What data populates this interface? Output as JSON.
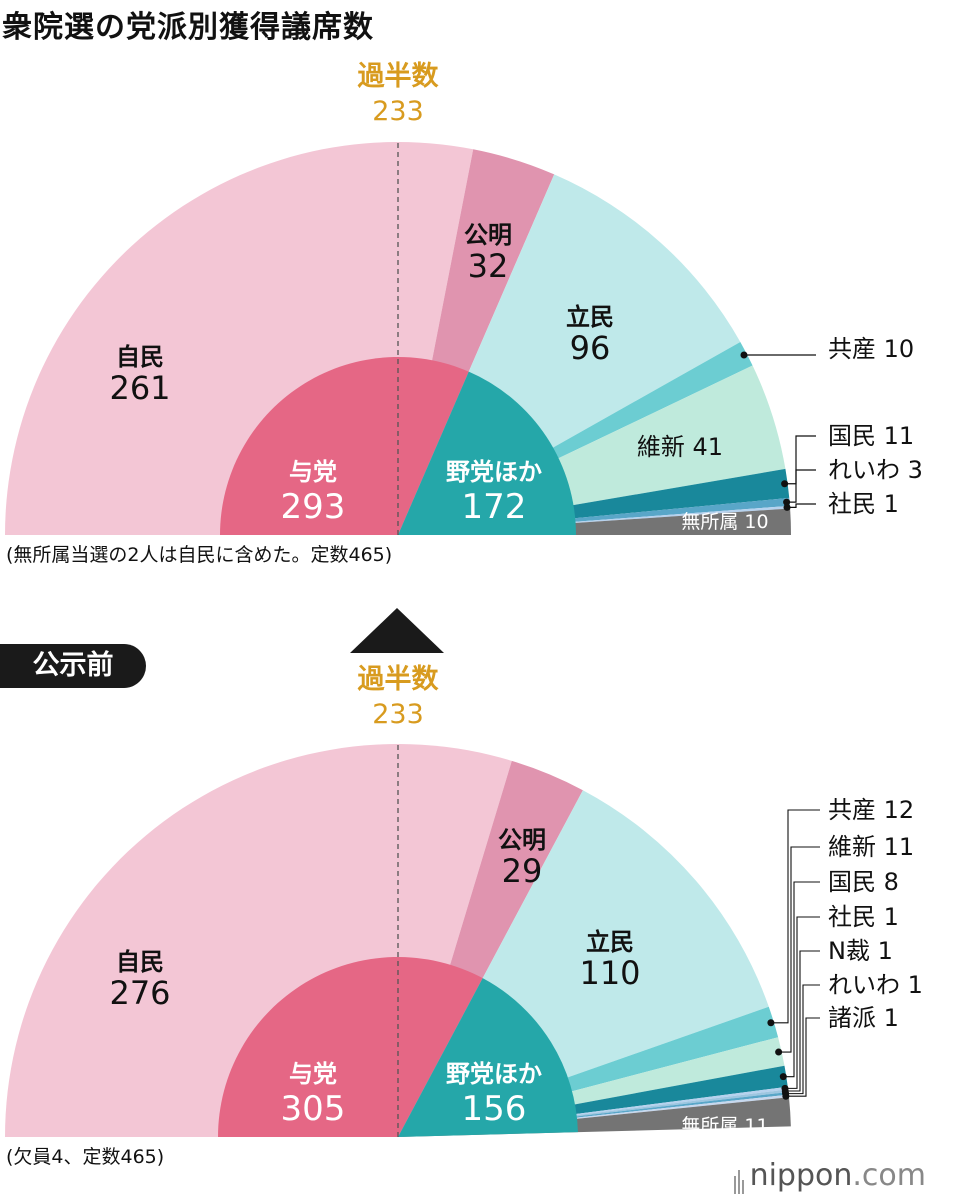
{
  "title": "衆院選の党派別獲得議席数",
  "colors": {
    "jimin": "#f3c6d5",
    "komei": "#e094af",
    "ritsumin": "#bfe9ea",
    "kyosan": "#6ccdd2",
    "ishin": "#bfeadc",
    "kokumin": "#19889b",
    "reiwa": "#59a6c8",
    "shamin": "#b6d2ee",
    "nkoku": "#9dc6e0",
    "shoha": "#c7d8ee",
    "mushozoku": "#747474",
    "ruling": "#e56785",
    "opposition": "#25a7a9",
    "majority": "#d89b1f"
  },
  "logo": {
    "name": "nippon",
    "suffix": ".com"
  },
  "before_label": "公示前",
  "chart_data": [
    {
      "type": "pie",
      "subtitle": "",
      "total_note": "(無所属当選の2人は自民に含めた。定数465)",
      "total": 465,
      "majority": {
        "label": "過半数",
        "value": "233"
      },
      "outer": [
        {
          "name": "自民",
          "value": 261,
          "color": "#f3c6d5",
          "label_value": "261"
        },
        {
          "name": "公明",
          "value": 32,
          "color": "#e094af",
          "label_value": "32"
        },
        {
          "name": "立民",
          "value": 96,
          "color": "#bfe9ea",
          "label_value": "96"
        },
        {
          "name": "共産",
          "value": 10,
          "color": "#6ccdd2",
          "label_value": "10",
          "callout": true
        },
        {
          "name": "維新",
          "value": 41,
          "color": "#bfeadc",
          "label_value": "41"
        },
        {
          "name": "国民",
          "value": 11,
          "color": "#19889b",
          "label_value": "11",
          "callout": true
        },
        {
          "name": "れいわ",
          "value": 3,
          "color": "#59a6c8",
          "label_value": "3",
          "callout": true
        },
        {
          "name": "社民",
          "value": 1,
          "color": "#b6d2ee",
          "label_value": "1",
          "callout": true
        },
        {
          "name": "無所属",
          "value": 10,
          "color": "#747474",
          "label_value": "10"
        }
      ],
      "inner": [
        {
          "name": "与党",
          "value": 293,
          "color": "#e56785",
          "label_value": "293"
        },
        {
          "name": "野党ほか",
          "value": 172,
          "color": "#25a7a9",
          "label_value": "172"
        }
      ]
    },
    {
      "type": "pie",
      "subtitle": "公示前",
      "total_note": "(欠員4、定数465)",
      "total": 465,
      "majority": {
        "label": "過半数",
        "value": "233"
      },
      "outer": [
        {
          "name": "自民",
          "value": 276,
          "color": "#f3c6d5",
          "label_value": "276"
        },
        {
          "name": "公明",
          "value": 29,
          "color": "#e094af",
          "label_value": "29"
        },
        {
          "name": "立民",
          "value": 110,
          "color": "#bfe9ea",
          "label_value": "110"
        },
        {
          "name": "共産",
          "value": 12,
          "color": "#6ccdd2",
          "label_value": "12",
          "callout": true
        },
        {
          "name": "維新",
          "value": 11,
          "color": "#bfeadc",
          "label_value": "11",
          "callout": true
        },
        {
          "name": "国民",
          "value": 8,
          "color": "#19889b",
          "label_value": "8",
          "callout": true
        },
        {
          "name": "社民",
          "value": 1,
          "color": "#b6d2ee",
          "label_value": "1",
          "callout": true
        },
        {
          "name": "N裁",
          "value": 1,
          "color": "#9dc6e0",
          "label_value": "1",
          "callout": true
        },
        {
          "name": "れいわ",
          "value": 1,
          "color": "#59a6c8",
          "label_value": "1",
          "callout": true
        },
        {
          "name": "諸派",
          "value": 1,
          "color": "#c7d8ee",
          "label_value": "1",
          "callout": true
        },
        {
          "name": "無所属",
          "value": 11,
          "color": "#747474",
          "label_value": "11"
        },
        {
          "name": "欠員",
          "value": 4,
          "color": "#ffffff",
          "label_value": "4",
          "hidden": true
        }
      ],
      "inner": [
        {
          "name": "与党",
          "value": 305,
          "color": "#e56785",
          "label_value": "305"
        },
        {
          "name": "野党ほか",
          "value": 156,
          "color": "#25a7a9",
          "label_value": "156"
        }
      ]
    }
  ]
}
